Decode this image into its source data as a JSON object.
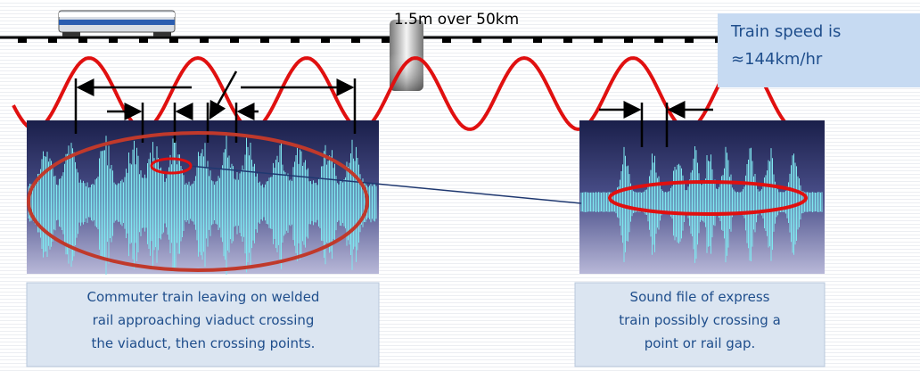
{
  "labels": {
    "distance": "1.5m over 50km",
    "speed": [
      "Train speed is",
      "≈144km/hr"
    ],
    "left_caption": [
      "Commuter train leaving on welded",
      "rail approaching viaduct crossing",
      "the viaduct, then crossing points."
    ],
    "right_caption": [
      "Sound file of express",
      "train possibly crossing a",
      "point or rail gap."
    ]
  }
}
